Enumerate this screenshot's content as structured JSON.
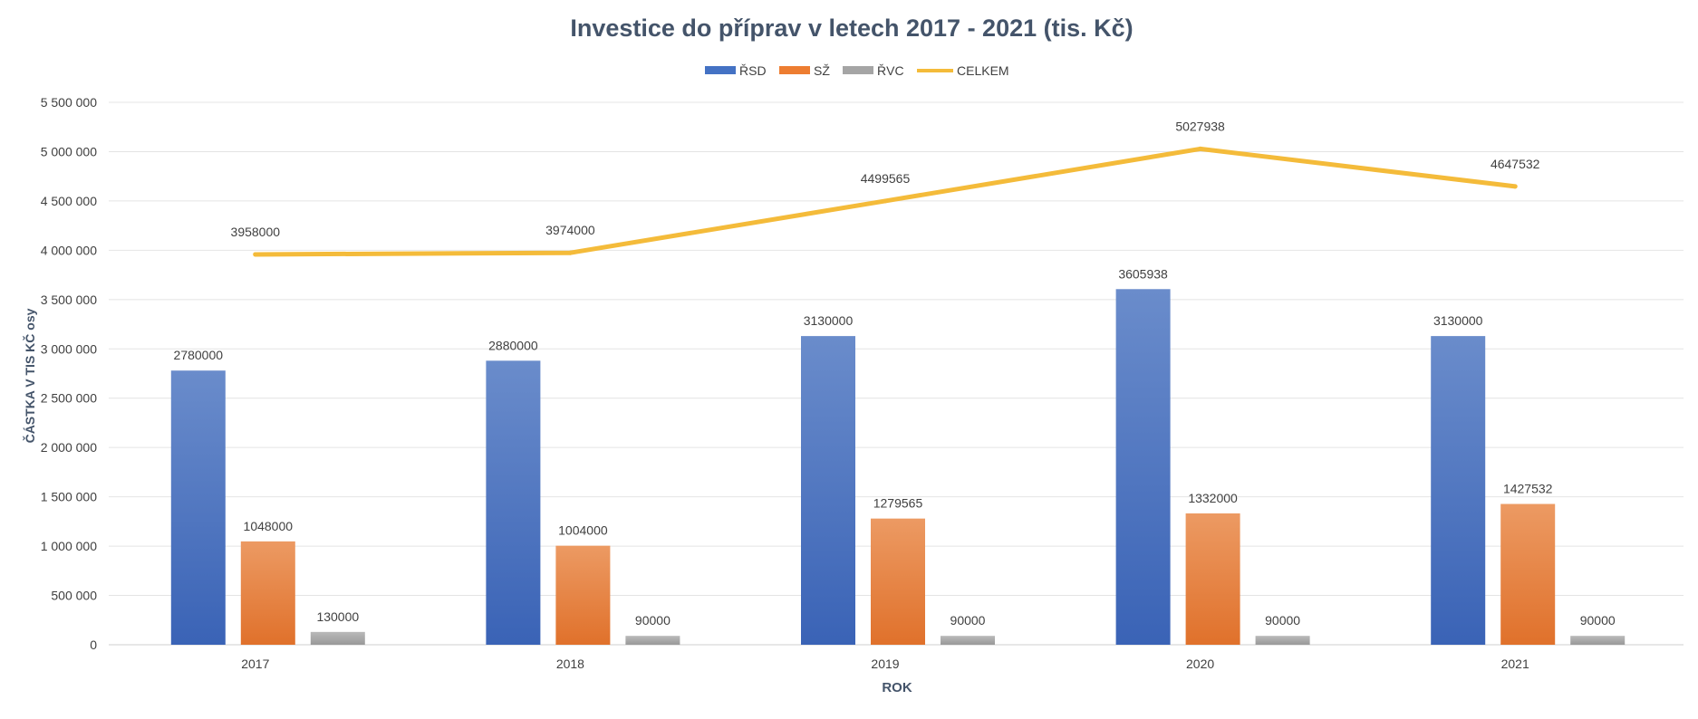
{
  "chart_data": {
    "type": "bar",
    "title": "Investice do příprav v letech 2017 - 2021 (tis. Kč)",
    "xlabel": "ROK",
    "ylabel": "ČÁSTKA V TIS KČ osy",
    "categories": [
      "2017",
      "2018",
      "2019",
      "2020",
      "2021"
    ],
    "ylim": [
      0,
      5500000
    ],
    "yticks": [
      0,
      500000,
      1000000,
      1500000,
      2000000,
      2500000,
      3000000,
      3500000,
      4000000,
      4500000,
      5000000,
      5500000
    ],
    "ytick_labels": [
      "0",
      "500 000",
      "1 000 000",
      "1 500 000",
      "2 000 000",
      "2 500 000",
      "3 000 000",
      "3 500 000",
      "4 000 000",
      "4 500 000",
      "5 000 000",
      "5 500 000"
    ],
    "grid": true,
    "legend_position": "top",
    "series": [
      {
        "name": "ŘSD",
        "kind": "bar",
        "color": "#4472c4",
        "values": [
          2780000,
          2880000,
          3130000,
          3605938,
          3130000
        ]
      },
      {
        "name": "SŽ",
        "kind": "bar",
        "color": "#ed7d31",
        "values": [
          1048000,
          1004000,
          1279565,
          1332000,
          1427532
        ]
      },
      {
        "name": "ŘVC",
        "kind": "bar",
        "color": "#a5a5a5",
        "values": [
          130000,
          90000,
          90000,
          90000,
          90000
        ]
      },
      {
        "name": "CELKEM",
        "kind": "line",
        "color": "#f4bb3a",
        "values": [
          3958000,
          3974000,
          4499565,
          5027938,
          4647532
        ]
      }
    ]
  }
}
